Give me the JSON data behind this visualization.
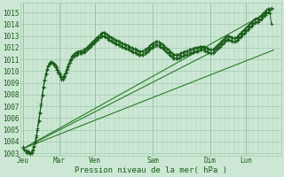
{
  "xlabel": "Pression niveau de la mer( hPa )",
  "ylim": [
    1002.8,
    1015.8
  ],
  "yticks": [
    1003,
    1004,
    1005,
    1006,
    1007,
    1008,
    1009,
    1010,
    1011,
    1012,
    1013,
    1014,
    1015
  ],
  "xtick_labels": [
    "Jeu",
    "Mar",
    "Ven",
    "Sam",
    "Dim",
    "Lun"
  ],
  "xtick_pos": [
    0,
    30,
    60,
    108,
    156,
    186
  ],
  "xlim": [
    -2,
    215
  ],
  "bg_color": "#cce8d4",
  "grid_color": "#a0c8b0",
  "line_color_main": "#1a5c1a",
  "line_color_smooth": "#2a7a2a",
  "n_points": 210,
  "series1": [
    1003.5,
    1003.3,
    1003.2,
    1003.1,
    1003.2,
    1003.1,
    1003.0,
    1003.1,
    1003.3,
    1003.6,
    1004.0,
    1004.5,
    1005.1,
    1005.8,
    1006.5,
    1007.2,
    1008.0,
    1008.7,
    1009.3,
    1009.8,
    1010.2,
    1010.5,
    1010.7,
    1010.8,
    1010.8,
    1010.7,
    1010.6,
    1010.5,
    1010.3,
    1010.1,
    1009.9,
    1009.7,
    1009.5,
    1009.5,
    1009.6,
    1009.8,
    1010.1,
    1010.4,
    1010.6,
    1010.9,
    1011.1,
    1011.3,
    1011.4,
    1011.5,
    1011.6,
    1011.6,
    1011.7,
    1011.7,
    1011.7,
    1011.7,
    1011.8,
    1011.8,
    1011.9,
    1012.0,
    1012.1,
    1012.2,
    1012.3,
    1012.4,
    1012.5,
    1012.6,
    1012.7,
    1012.8,
    1012.9,
    1013.0,
    1013.1,
    1013.2,
    1013.3,
    1013.3,
    1013.3,
    1013.2,
    1013.1,
    1013.0,
    1013.0,
    1012.9,
    1012.8,
    1012.8,
    1012.7,
    1012.7,
    1012.6,
    1012.6,
    1012.5,
    1012.5,
    1012.4,
    1012.4,
    1012.3,
    1012.3,
    1012.2,
    1012.2,
    1012.1,
    1012.1,
    1012.0,
    1012.0,
    1011.9,
    1011.9,
    1011.8,
    1011.8,
    1011.7,
    1011.7,
    1011.7,
    1011.7,
    1011.7,
    1011.8,
    1011.8,
    1011.9,
    1012.0,
    1012.1,
    1012.2,
    1012.3,
    1012.4,
    1012.4,
    1012.5,
    1012.5,
    1012.5,
    1012.5,
    1012.4,
    1012.4,
    1012.3,
    1012.2,
    1012.1,
    1012.0,
    1011.9,
    1011.8,
    1011.7,
    1011.6,
    1011.5,
    1011.4,
    1011.4,
    1011.4,
    1011.4,
    1011.4,
    1011.4,
    1011.5,
    1011.5,
    1011.6,
    1011.6,
    1011.7,
    1011.7,
    1011.7,
    1011.8,
    1011.8,
    1011.8,
    1011.9,
    1011.9,
    1012.0,
    1012.0,
    1012.0,
    1012.0,
    1012.1,
    1012.1,
    1012.1,
    1012.1,
    1012.1,
    1012.0,
    1012.0,
    1011.9,
    1011.9,
    1011.8,
    1011.8,
    1011.8,
    1011.9,
    1012.0,
    1012.1,
    1012.2,
    1012.3,
    1012.4,
    1012.5,
    1012.6,
    1012.7,
    1012.8,
    1012.9,
    1013.0,
    1013.0,
    1013.0,
    1012.9,
    1012.9,
    1012.8,
    1012.8,
    1012.8,
    1012.9,
    1013.0,
    1013.1,
    1013.2,
    1013.3,
    1013.4,
    1013.5,
    1013.6,
    1013.7,
    1013.8,
    1013.9,
    1014.0,
    1014.1,
    1014.2,
    1014.3,
    1014.4,
    1014.5,
    1014.5,
    1014.5,
    1014.6,
    1014.7,
    1014.8,
    1014.9,
    1015.0,
    1015.1,
    1015.2,
    1015.3,
    1015.3,
    1015.2,
    1015.4
  ],
  "series2": [
    1003.5,
    1003.3,
    1003.2,
    1003.0,
    1003.1,
    1003.0,
    1002.9,
    1003.0,
    1003.2,
    1003.5,
    1003.9,
    1004.4,
    1005.0,
    1005.7,
    1006.4,
    1007.1,
    1007.9,
    1008.6,
    1009.2,
    1009.7,
    1010.1,
    1010.4,
    1010.6,
    1010.7,
    1010.7,
    1010.6,
    1010.5,
    1010.3,
    1010.1,
    1009.9,
    1009.7,
    1009.5,
    1009.3,
    1009.3,
    1009.4,
    1009.6,
    1009.9,
    1010.2,
    1010.4,
    1010.7,
    1010.9,
    1011.1,
    1011.2,
    1011.3,
    1011.4,
    1011.4,
    1011.5,
    1011.5,
    1011.5,
    1011.5,
    1011.6,
    1011.6,
    1011.7,
    1011.8,
    1011.9,
    1012.0,
    1012.1,
    1012.2,
    1012.3,
    1012.4,
    1012.5,
    1012.6,
    1012.7,
    1012.8,
    1012.9,
    1013.0,
    1013.0,
    1013.0,
    1013.0,
    1012.9,
    1012.8,
    1012.7,
    1012.7,
    1012.6,
    1012.5,
    1012.5,
    1012.4,
    1012.4,
    1012.3,
    1012.3,
    1012.2,
    1012.2,
    1012.1,
    1012.1,
    1012.0,
    1012.0,
    1011.9,
    1011.9,
    1011.8,
    1011.8,
    1011.7,
    1011.7,
    1011.6,
    1011.6,
    1011.5,
    1011.5,
    1011.4,
    1011.4,
    1011.4,
    1011.4,
    1011.4,
    1011.5,
    1011.5,
    1011.6,
    1011.7,
    1011.8,
    1011.9,
    1012.0,
    1012.1,
    1012.1,
    1012.2,
    1012.2,
    1012.2,
    1012.2,
    1012.1,
    1012.1,
    1012.0,
    1011.9,
    1011.8,
    1011.7,
    1011.6,
    1011.5,
    1011.4,
    1011.3,
    1011.2,
    1011.1,
    1011.1,
    1011.1,
    1011.1,
    1011.1,
    1011.1,
    1011.2,
    1011.2,
    1011.3,
    1011.3,
    1011.4,
    1011.4,
    1011.4,
    1011.5,
    1011.5,
    1011.5,
    1011.6,
    1011.6,
    1011.7,
    1011.7,
    1011.7,
    1011.7,
    1011.8,
    1011.8,
    1011.8,
    1011.8,
    1011.8,
    1011.7,
    1011.7,
    1011.6,
    1011.6,
    1011.5,
    1011.5,
    1011.5,
    1011.6,
    1011.7,
    1011.8,
    1011.9,
    1012.0,
    1012.1,
    1012.2,
    1012.3,
    1012.4,
    1012.5,
    1012.6,
    1012.7,
    1012.7,
    1012.7,
    1012.6,
    1012.6,
    1012.5,
    1012.5,
    1012.5,
    1012.6,
    1012.7,
    1012.8,
    1012.9,
    1013.0,
    1013.1,
    1013.2,
    1013.3,
    1013.4,
    1013.5,
    1013.6,
    1013.7,
    1013.8,
    1013.9,
    1014.0,
    1014.1,
    1014.2,
    1014.2,
    1014.2,
    1014.3,
    1014.4,
    1014.5,
    1014.6,
    1014.7,
    1014.8,
    1014.9,
    1015.0,
    1015.0,
    1014.9,
    1014.0
  ],
  "trend_lines": [
    {
      "x0": 0,
      "y0": 1003.4,
      "x1": 209,
      "y1": 1015.3
    },
    {
      "x0": 0,
      "y0": 1003.4,
      "x1": 209,
      "y1": 1011.8
    },
    {
      "x0": 0,
      "y0": 1003.4,
      "x1": 155,
      "y1": 1011.5
    }
  ]
}
